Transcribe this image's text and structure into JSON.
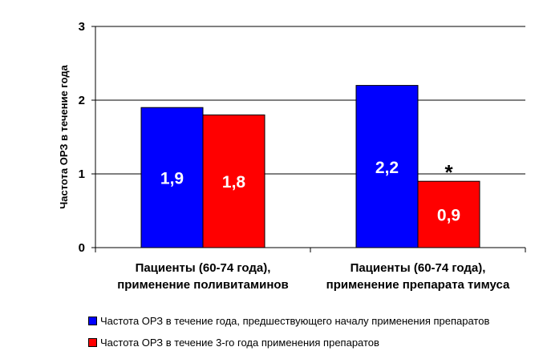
{
  "chart_data": {
    "type": "bar",
    "ylabel": "Частота ОРЗ в течение года",
    "ylim": [
      0,
      3
    ],
    "yticks": [
      "0",
      "1",
      "2",
      "3"
    ],
    "grid": true,
    "categories": [
      [
        "Пациенты (60-74 года),",
        "применение поливитаминов"
      ],
      [
        "Пациенты (60-74 года),",
        "применение препарата тимуса"
      ]
    ],
    "series": [
      {
        "name": "Частота ОРЗ в течение года, предшествующего началу применения препаратов",
        "color": "#0000ff",
        "values": [
          1.9,
          2.2
        ],
        "labels": [
          "1,9",
          "2,2"
        ]
      },
      {
        "name": "Частота ОРЗ в течение 3-го года применения препаратов",
        "color": "#ff0000",
        "values": [
          1.8,
          0.9
        ],
        "labels": [
          "1,8",
          "0,9"
        ]
      }
    ],
    "annotations": [
      {
        "text": "*",
        "category": 1,
        "series": 1
      }
    ],
    "legend_position": "bottom"
  }
}
